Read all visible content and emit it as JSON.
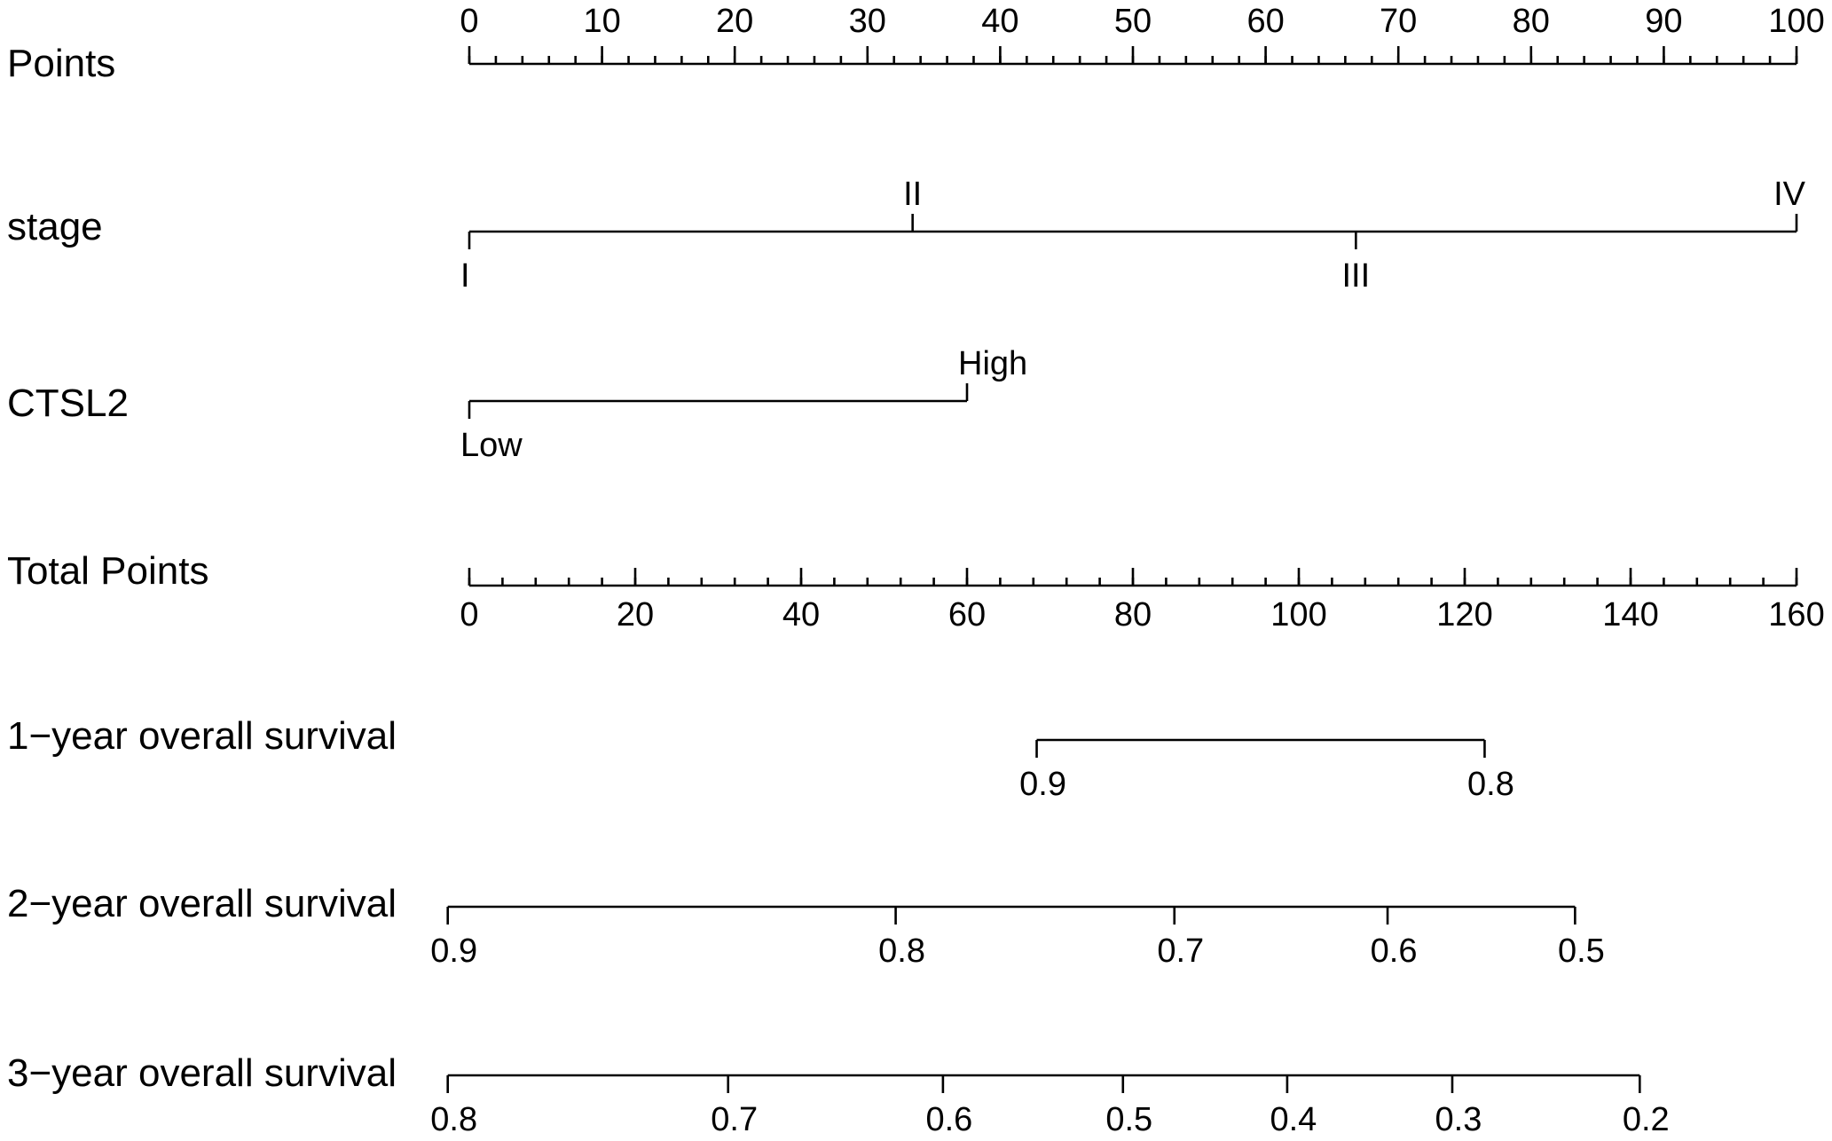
{
  "chart_data": {
    "type": "nomogram",
    "rows": [
      {
        "label": "Points",
        "kind": "points_scale",
        "range": [
          0,
          100
        ],
        "major_ticks": [
          "0",
          "10",
          "20",
          "30",
          "40",
          "50",
          "60",
          "70",
          "80",
          "90",
          "100"
        ],
        "minor_step": 2
      },
      {
        "label": "stage",
        "kind": "categorical",
        "categories": [
          {
            "name": "I",
            "points": 0
          },
          {
            "name": "II",
            "points": 33.4
          },
          {
            "name": "III",
            "points": 66.8
          },
          {
            "name": "IV",
            "points": 100
          }
        ]
      },
      {
        "label": "CTSL2",
        "kind": "categorical",
        "categories": [
          {
            "name": "Low",
            "points": 0
          },
          {
            "name": "High",
            "points": 37.5
          }
        ]
      },
      {
        "label": "Total Points",
        "kind": "total_scale",
        "range": [
          0,
          160
        ],
        "major_ticks": [
          "0",
          "20",
          "40",
          "60",
          "80",
          "100",
          "120",
          "140",
          "160"
        ],
        "minor_step": 4
      },
      {
        "label": "1−year overall survival",
        "kind": "probability",
        "ticks": [
          {
            "label": "0.9",
            "total_points": 68.4
          },
          {
            "label": "0.8",
            "total_points": 122.4
          }
        ]
      },
      {
        "label": "2−year overall survival",
        "kind": "probability",
        "ticks": [
          {
            "label": "0.9",
            "total_points": -2.6
          },
          {
            "label": "0.8",
            "total_points": 51.4
          },
          {
            "label": "0.7",
            "total_points": 85.0
          },
          {
            "label": "0.6",
            "total_points": 110.7
          },
          {
            "label": "0.5",
            "total_points": 133.3
          }
        ]
      },
      {
        "label": "3−year overall survival",
        "kind": "probability",
        "ticks": [
          {
            "label": "0.8",
            "total_points": -2.6
          },
          {
            "label": "0.7",
            "total_points": 31.2
          },
          {
            "label": "0.6",
            "total_points": 57.1
          },
          {
            "label": "0.5",
            "total_points": 78.8
          },
          {
            "label": "0.4",
            "total_points": 98.6
          },
          {
            "label": "0.3",
            "total_points": 118.5
          },
          {
            "label": "0.2",
            "total_points": 141.1
          }
        ]
      }
    ]
  }
}
